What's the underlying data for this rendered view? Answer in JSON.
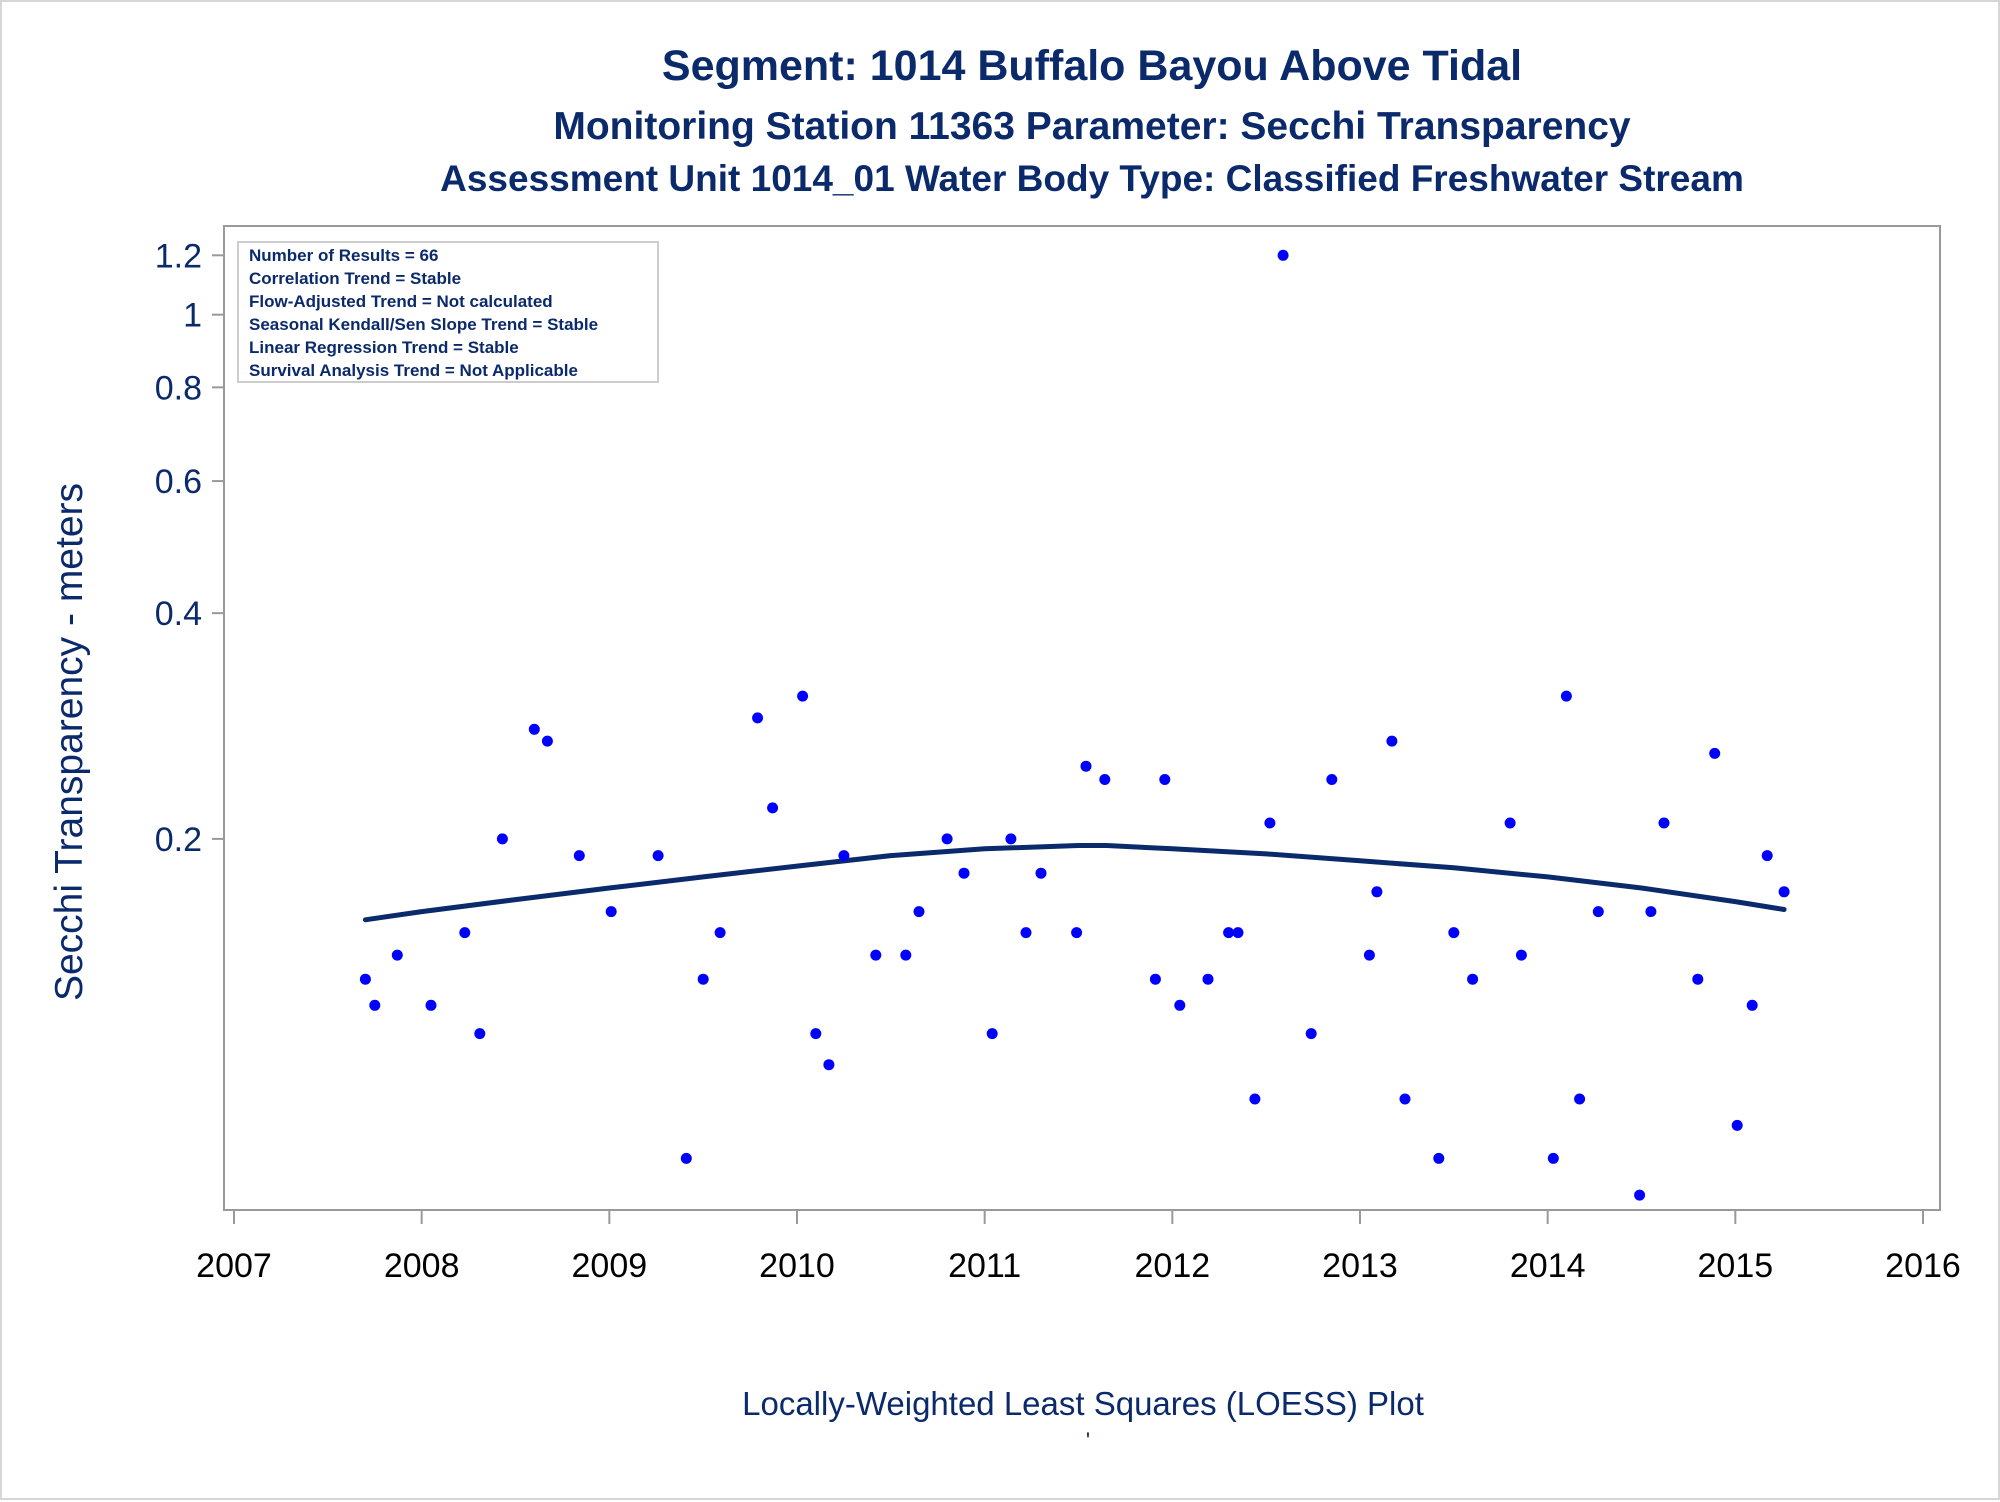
{
  "titles": {
    "line1": "Segment: 1014  Buffalo Bayou Above Tidal",
    "line2": "Monitoring Station 11363 Parameter: Secchi Transparency",
    "line3": "Assessment Unit 1014_01   Water Body Type: Classified Freshwater Stream"
  },
  "stats_box": [
    "Number of Results = 66",
    "Correlation Trend = Stable",
    "Flow-Adjusted Trend = Not calculated",
    "Seasonal Kendall/Sen Slope Trend = Stable",
    "Linear Regression Trend = Stable",
    "Survival Analysis Trend = Not Applicable"
  ],
  "footer_mark": "'",
  "colors": {
    "points": "#0000ff",
    "loess": "#0b2a6b",
    "text": "#0b2a6b",
    "frame": "#999999"
  },
  "chart_data": {
    "type": "scatter",
    "title": "Segment: 1014  Buffalo Bayou Above Tidal",
    "xlabel": "Locally-Weighted Least Squares (LOESS) Plot",
    "ylabel": "Secchi Transparency - meters",
    "yscale": "log",
    "xlim": [
      2007,
      2016
    ],
    "ylim": [
      0.066,
      1.25
    ],
    "xticks": [
      2007,
      2008,
      2009,
      2010,
      2011,
      2012,
      2013,
      2014,
      2015,
      2016
    ],
    "yticks": [
      0.2,
      0.4,
      0.6,
      0.8,
      1,
      1.2
    ],
    "ytick_labels": [
      "0.2",
      "0.4",
      "0.6",
      "0.8",
      "1",
      "1.2"
    ],
    "legend": "top-left",
    "grid": false,
    "series": [
      {
        "type": "scatter",
        "points": [
          [
            2007.7,
            0.13
          ],
          [
            2007.75,
            0.12
          ],
          [
            2007.87,
            0.14
          ],
          [
            2008.05,
            0.12
          ],
          [
            2008.23,
            0.15
          ],
          [
            2008.31,
            0.11
          ],
          [
            2008.43,
            0.2
          ],
          [
            2008.6,
            0.28
          ],
          [
            2008.67,
            0.27
          ],
          [
            2008.84,
            0.19
          ],
          [
            2009.01,
            0.16
          ],
          [
            2009.26,
            0.19
          ],
          [
            2009.41,
            0.075
          ],
          [
            2009.5,
            0.13
          ],
          [
            2009.59,
            0.15
          ],
          [
            2009.79,
            0.29
          ],
          [
            2009.87,
            0.22
          ],
          [
            2010.03,
            0.31
          ],
          [
            2010.1,
            0.11
          ],
          [
            2010.17,
            0.1
          ],
          [
            2010.25,
            0.19
          ],
          [
            2010.42,
            0.14
          ],
          [
            2010.58,
            0.14
          ],
          [
            2010.65,
            0.16
          ],
          [
            2010.8,
            0.2
          ],
          [
            2010.89,
            0.18
          ],
          [
            2011.04,
            0.11
          ],
          [
            2011.14,
            0.2
          ],
          [
            2011.22,
            0.15
          ],
          [
            2011.3,
            0.18
          ],
          [
            2011.49,
            0.15
          ],
          [
            2011.54,
            0.25
          ],
          [
            2011.64,
            0.24
          ],
          [
            2011.91,
            0.13
          ],
          [
            2011.96,
            0.24
          ],
          [
            2012.04,
            0.12
          ],
          [
            2012.19,
            0.13
          ],
          [
            2012.3,
            0.15
          ],
          [
            2012.35,
            0.15
          ],
          [
            2012.44,
            0.09
          ],
          [
            2012.52,
            0.21
          ],
          [
            2012.59,
            1.2
          ],
          [
            2012.74,
            0.11
          ],
          [
            2012.85,
            0.24
          ],
          [
            2013.05,
            0.14
          ],
          [
            2013.09,
            0.17
          ],
          [
            2013.17,
            0.27
          ],
          [
            2013.24,
            0.09
          ],
          [
            2013.42,
            0.075
          ],
          [
            2013.5,
            0.15
          ],
          [
            2013.6,
            0.13
          ],
          [
            2013.8,
            0.21
          ],
          [
            2013.86,
            0.14
          ],
          [
            2014.03,
            0.075
          ],
          [
            2014.1,
            0.31
          ],
          [
            2014.17,
            0.09
          ],
          [
            2014.27,
            0.16
          ],
          [
            2014.49,
            0.067
          ],
          [
            2014.55,
            0.16
          ],
          [
            2014.62,
            0.21
          ],
          [
            2014.8,
            0.13
          ],
          [
            2014.89,
            0.26
          ],
          [
            2015.01,
            0.083
          ],
          [
            2015.09,
            0.12
          ],
          [
            2015.17,
            0.19
          ],
          [
            2015.26,
            0.17
          ]
        ]
      },
      {
        "type": "line",
        "points": [
          [
            2007.7,
            0.156
          ],
          [
            2008.0,
            0.16
          ],
          [
            2008.5,
            0.166
          ],
          [
            2009.0,
            0.172
          ],
          [
            2009.5,
            0.178
          ],
          [
            2010.0,
            0.184
          ],
          [
            2010.5,
            0.19
          ],
          [
            2011.0,
            0.194
          ],
          [
            2011.5,
            0.196
          ],
          [
            2011.65,
            0.196
          ],
          [
            2012.0,
            0.194
          ],
          [
            2012.5,
            0.191
          ],
          [
            2013.0,
            0.187
          ],
          [
            2013.5,
            0.183
          ],
          [
            2014.0,
            0.178
          ],
          [
            2014.5,
            0.172
          ],
          [
            2015.0,
            0.165
          ],
          [
            2015.26,
            0.161
          ]
        ]
      }
    ]
  }
}
